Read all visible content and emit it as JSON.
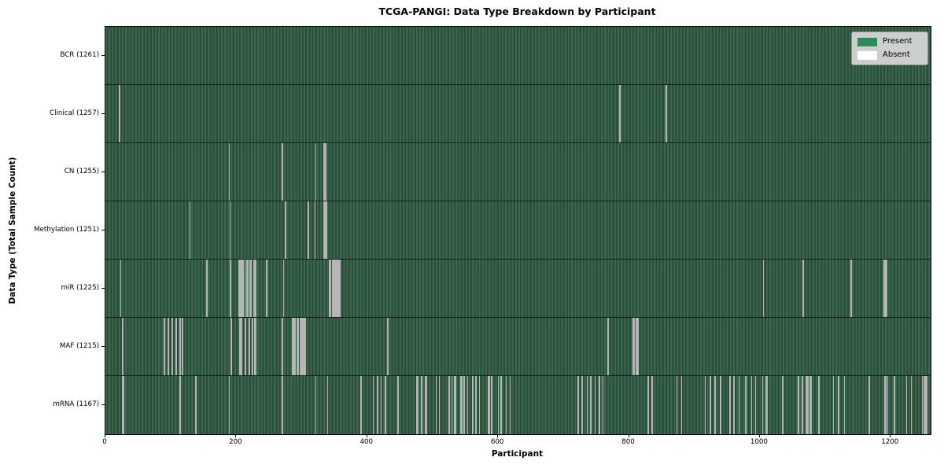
{
  "chart_data": {
    "type": "heatmap",
    "title": "TCGA-PANGI: Data Type Breakdown by Participant",
    "xlabel": "Participant",
    "ylabel": "Data Type (Total Sample Count)",
    "x_ticks": [
      0,
      200,
      400,
      600,
      800,
      1000,
      1200
    ],
    "x_max": 1261,
    "legend_position": "upper right",
    "legend": [
      {
        "label": "Present",
        "color": "#2e8b57"
      },
      {
        "label": "Absent",
        "color": "#ffffff"
      }
    ],
    "colors": {
      "present": "#2e8b57",
      "absent": "#ffffff",
      "row_stripe_light": "#3a684c",
      "row_stripe_dark": "#2b4c39",
      "absent_line_render": "#b5b5b5",
      "legend_bg": "#d9d9d9",
      "grid_line": "#14231a"
    },
    "rows": [
      {
        "label": "BCR (1261)",
        "data_type": "BCR",
        "total": 1261,
        "absent": []
      },
      {
        "label": "Clinical (1257)",
        "data_type": "Clinical",
        "total": 1257,
        "absent": [
          21,
          22,
          786,
          857
        ]
      },
      {
        "label": "CN (1255)",
        "data_type": "CN",
        "total": 1255,
        "absent": [
          189,
          270,
          321,
          334,
          335,
          336
        ]
      },
      {
        "label": "Methylation (1251)",
        "data_type": "Methylation",
        "total": 1251,
        "absent": [
          129,
          190,
          275,
          310,
          320,
          333,
          334,
          335,
          336,
          337
        ]
      },
      {
        "label": "miR (1225)",
        "data_type": "miR",
        "total": 1225,
        "absent": [
          23,
          155,
          191,
          204,
          205,
          206,
          209,
          210,
          213,
          216,
          217,
          221,
          222,
          226,
          228,
          229,
          246,
          272,
          342,
          343,
          344,
          347,
          348,
          351,
          352,
          354,
          355,
          358,
          1005,
          1066,
          1139,
          1190,
          1191,
          1192,
          1193,
          1194
        ]
      },
      {
        "label": "MAF (1215)",
        "data_type": "MAF",
        "total": 1215,
        "absent": [
          26,
          89,
          90,
          95,
          96,
          101,
          102,
          107,
          108,
          113,
          114,
          117,
          118,
          192,
          205,
          206,
          207,
          208,
          213,
          214,
          219,
          220,
          224,
          225,
          228,
          229,
          270,
          285,
          286,
          288,
          289,
          293,
          294,
          297,
          298,
          300,
          301,
          304,
          305,
          431,
          768,
          806,
          807,
          811,
          812,
          813
        ]
      },
      {
        "label": "mRNA (1167)",
        "data_type": "mRNA",
        "total": 1167,
        "absent": [
          26,
          27,
          114,
          138,
          189,
          270,
          321,
          339,
          390,
          409,
          415,
          416,
          421,
          427,
          428,
          447,
          476,
          477,
          483,
          489,
          490,
          505,
          510,
          525,
          529,
          533,
          534,
          535,
          543,
          544,
          548,
          553,
          561,
          566,
          571,
          585,
          586,
          590,
          600,
          604,
          605,
          612,
          618,
          722,
          728,
          736,
          741,
          748,
          754,
          755,
          760,
          829,
          835,
          873,
          880,
          916,
          924,
          931,
          940,
          954,
          960,
          968,
          978,
          987,
          993,
          1004,
          1009,
          1010,
          1011,
          1035,
          1059,
          1065,
          1070,
          1071,
          1073,
          1077,
          1078,
          1090,
          1112,
          1120,
          1129,
          1167,
          1191,
          1192,
          1195,
          1205,
          1224,
          1231,
          1248,
          1251,
          1252,
          1253,
          1254,
          1255
        ]
      }
    ]
  }
}
